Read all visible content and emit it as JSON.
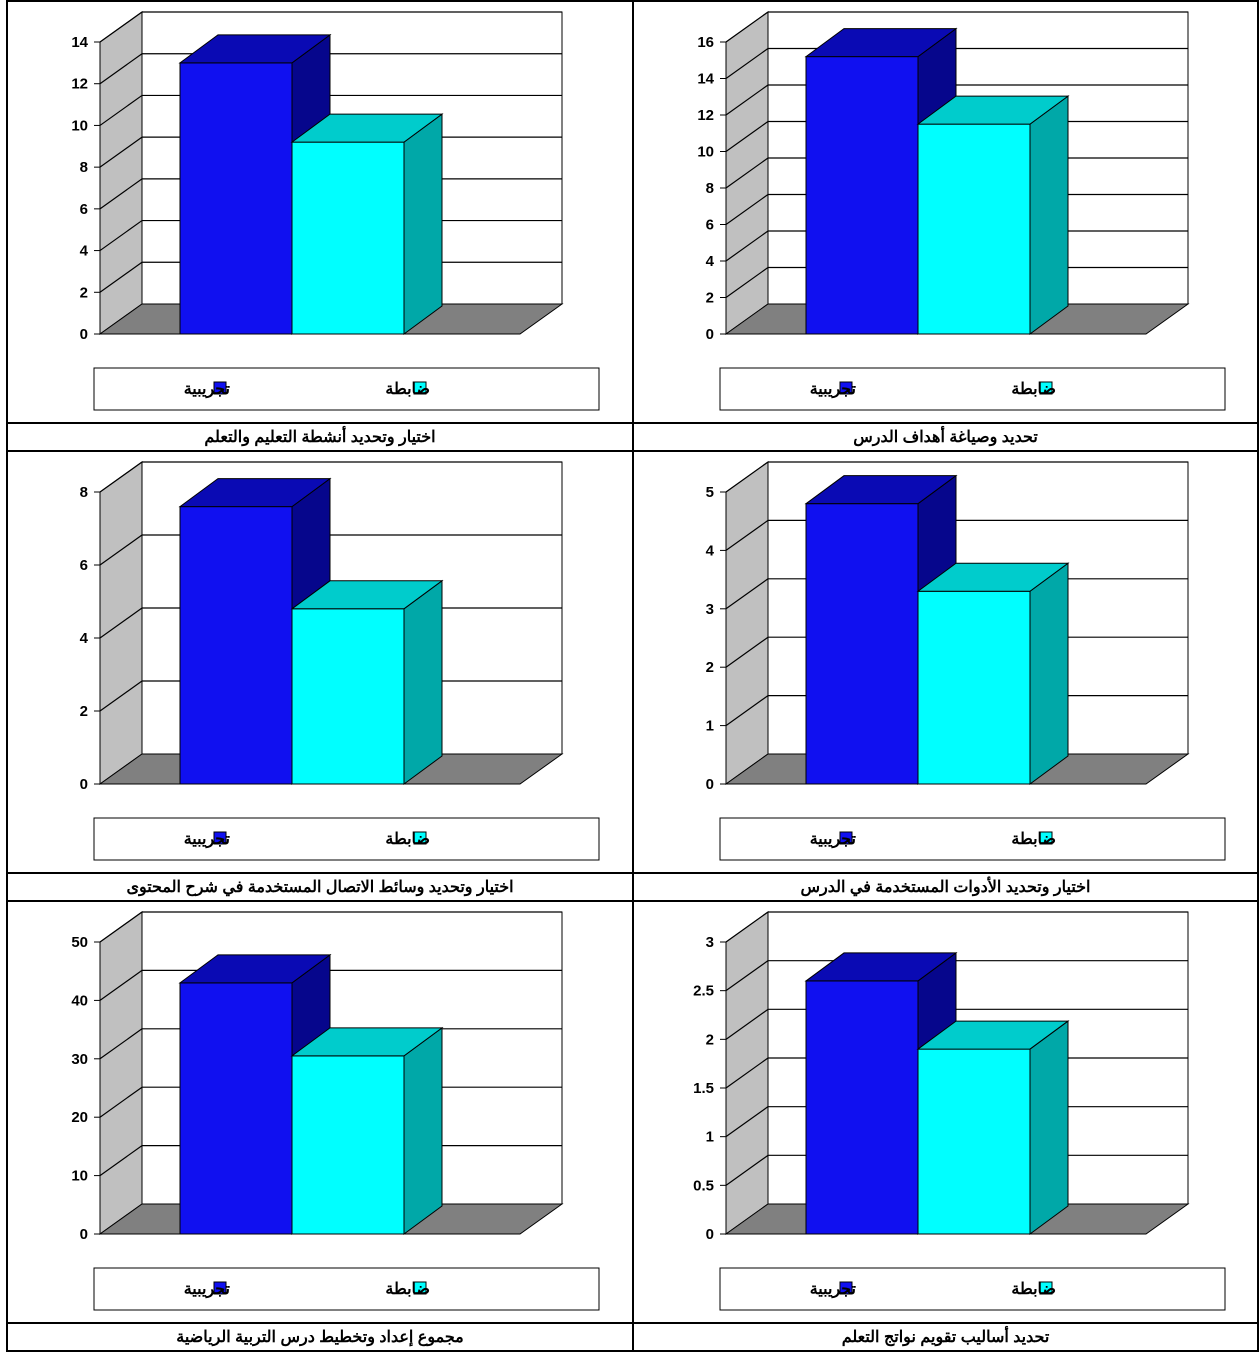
{
  "colors": {
    "experimental": "#1010f0",
    "experimental_top": "#0a0ab4",
    "experimental_side": "#06068c",
    "control": "#00ffff",
    "control_top": "#00cccc",
    "control_side": "#00a8a8",
    "wall": "#c0c0c0",
    "floor": "#808080"
  },
  "legend": {
    "experimental": "تجريبية",
    "control": "ضابطة"
  },
  "charts": [
    {
      "caption": "تحديد وصياغة أهداف الدرس"
    },
    {
      "caption": "اختيار وتحديد أنشطة التعليم والتعلم"
    },
    {
      "caption": "اختيار وتحديد الأدوات المستخدمة في الدرس"
    },
    {
      "caption": "اختيار وتحديد وسائط الاتصال المستخدمة في شرح المحتوى"
    },
    {
      "caption": "تحديد أساليب تقويم نواتج التعلم"
    },
    {
      "caption": "مجموع إعداد وتخطيط درس التربية الرياضية"
    }
  ],
  "chart_data": [
    {
      "type": "bar",
      "categories": [
        "تجريبية",
        "ضابطة"
      ],
      "values": [
        15.2,
        11.5
      ],
      "ylim": [
        0,
        16
      ],
      "yticks": [
        "0",
        "2",
        "4",
        "6",
        "8",
        "10",
        "12",
        "14",
        "16"
      ],
      "grid": true,
      "legend": "bottom"
    },
    {
      "type": "bar",
      "categories": [
        "تجريبية",
        "ضابطة"
      ],
      "values": [
        13,
        9.2
      ],
      "ylim": [
        0,
        14
      ],
      "yticks": [
        "0",
        "2",
        "4",
        "6",
        "8",
        "10",
        "12",
        "14"
      ],
      "grid": true,
      "legend": "bottom"
    },
    {
      "type": "bar",
      "categories": [
        "تجريبية",
        "ضابطة"
      ],
      "values": [
        4.8,
        3.3
      ],
      "ylim": [
        0,
        5
      ],
      "yticks": [
        "0",
        "1",
        "2",
        "3",
        "4",
        "5"
      ],
      "grid": true,
      "legend": "bottom"
    },
    {
      "type": "bar",
      "categories": [
        "تجريبية",
        "ضابطة"
      ],
      "values": [
        7.6,
        4.8
      ],
      "ylim": [
        0,
        8
      ],
      "yticks": [
        "0",
        "2",
        "4",
        "6",
        "8"
      ],
      "grid": true,
      "legend": "bottom"
    },
    {
      "type": "bar",
      "categories": [
        "تجريبية",
        "ضابطة"
      ],
      "values": [
        2.6,
        1.9
      ],
      "ylim": [
        0,
        3
      ],
      "yticks": [
        "0",
        "0.5",
        "1",
        "1.5",
        "2",
        "2.5",
        "3"
      ],
      "grid": true,
      "legend": "bottom"
    },
    {
      "type": "bar",
      "categories": [
        "تجريبية",
        "ضابطة"
      ],
      "values": [
        43,
        30.5
      ],
      "ylim": [
        0,
        50
      ],
      "yticks": [
        "0",
        "10",
        "20",
        "30",
        "40",
        "50"
      ],
      "grid": true,
      "legend": "bottom"
    }
  ]
}
